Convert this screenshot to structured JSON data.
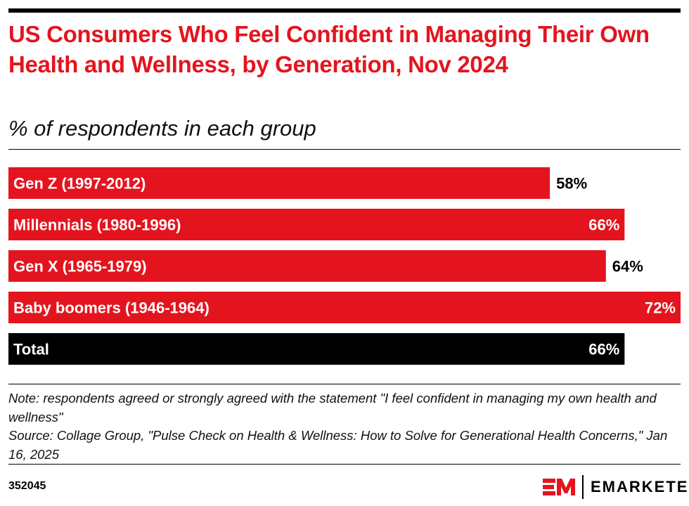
{
  "title": "US Consumers Who Feel Confident in Managing Their Own Health and Wellness, by Generation, Nov 2024",
  "subtitle": "% of respondents in each group",
  "note": "Note: respondents agreed or strongly agreed with the statement \"I feel confident in managing my own health and wellness\"",
  "source": "Source: Collage Group, \"Pulse Check on Health & Wellness: How to Solve for Generational Health Concerns,\" Jan 16, 2025",
  "chart_id": "352045",
  "brand": {
    "logo_mark": "EM",
    "name": "EMARKETER"
  },
  "colors": {
    "title": "#e4141e",
    "bar": "#e4141e",
    "total_bar": "#000000"
  },
  "chart_data": {
    "type": "bar",
    "orientation": "horizontal",
    "categories": [
      "Gen Z (1997-2012)",
      "Millennials (1980-1996)",
      "Gen X (1965-1979)",
      "Baby boomers (1946-1964)",
      "Total"
    ],
    "values": [
      58,
      66,
      64,
      72,
      66
    ],
    "value_labels": [
      "58%",
      "66%",
      "64%",
      "72%",
      "66%"
    ],
    "unit": "%",
    "grid": false,
    "legend": "none"
  }
}
